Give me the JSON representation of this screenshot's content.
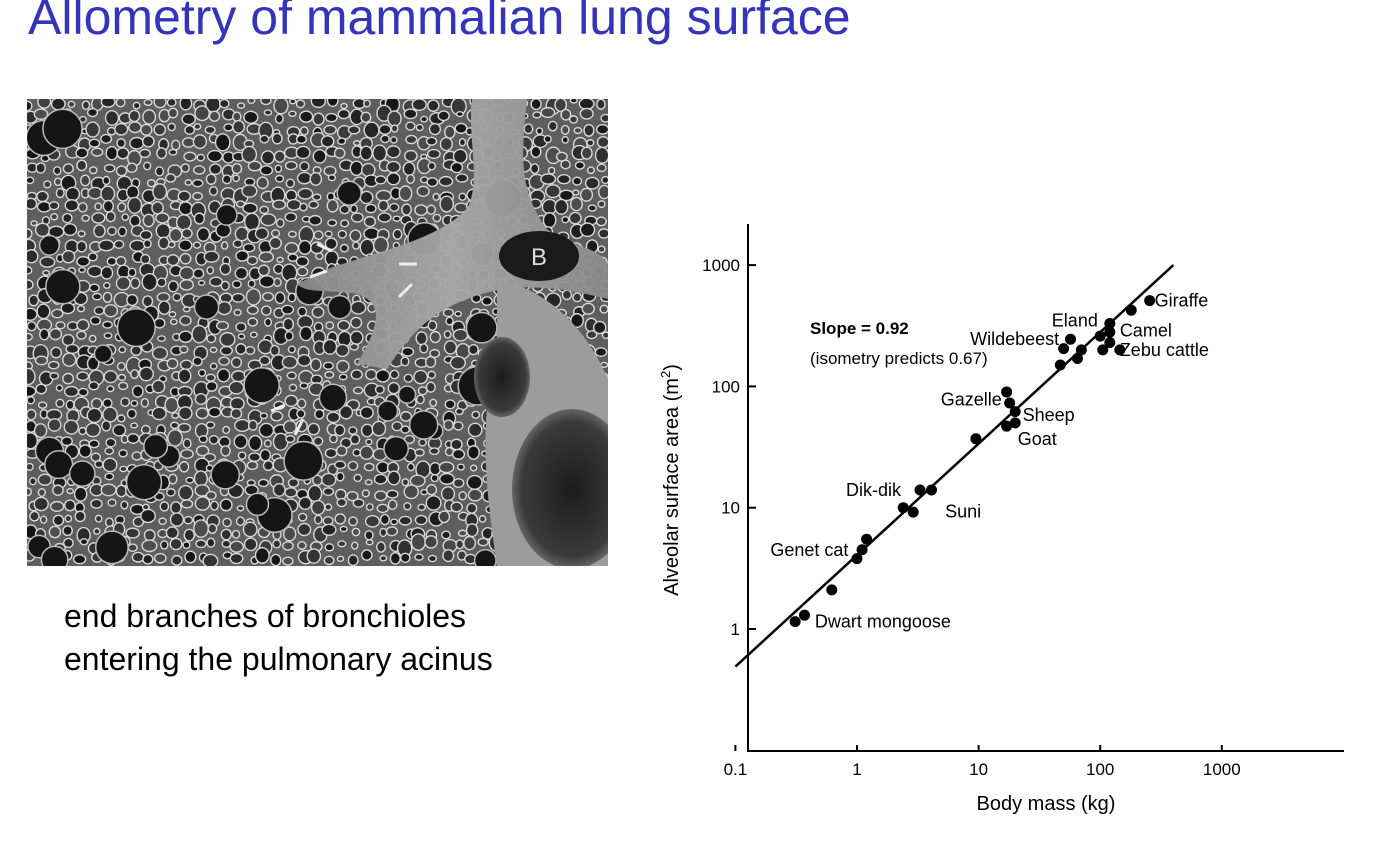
{
  "slide": {
    "title": "Allometry of mammalian lung surface",
    "caption_lines": [
      "end branches of bronchioles",
      "entering the pulmonary acinus"
    ]
  },
  "micrograph": {
    "label": "B"
  },
  "colors": {
    "title": "#3333bb",
    "ink": "#000000"
  },
  "chart_data": {
    "type": "scatter",
    "xlabel": "Body mass (kg)",
    "ylabel": "Alveolar surface area (m",
    "ylabel_sup": "2",
    "ylabel_close": ")",
    "x_scale": "log",
    "y_scale": "log",
    "xlim": [
      0.015,
      1500
    ],
    "ylim": [
      0.1,
      2000
    ],
    "x_ticks": [
      0.1,
      1,
      10,
      100,
      1000
    ],
    "x_tick_labels": [
      "0.1",
      "1",
      "10",
      "100",
      "1000"
    ],
    "y_ticks": [
      1,
      10,
      100,
      1000
    ],
    "y_tick_labels": [
      "1",
      "10",
      "100",
      "1000"
    ],
    "grid": false,
    "annotation_bold": "Slope = 0.92",
    "annotation_note": "(isometry predicts 0.67)",
    "fit_line": {
      "slope": 0.92,
      "x": [
        0.1,
        400
      ],
      "y": [
        0.49,
        1000
      ]
    },
    "points": [
      {
        "x": 0.31,
        "y": 1.15
      },
      {
        "x": 0.37,
        "y": 1.3
      },
      {
        "x": 0.62,
        "y": 2.1
      },
      {
        "x": 1.0,
        "y": 3.8
      },
      {
        "x": 1.1,
        "y": 4.5
      },
      {
        "x": 1.2,
        "y": 5.5
      },
      {
        "x": 2.4,
        "y": 10
      },
      {
        "x": 2.9,
        "y": 9.2
      },
      {
        "x": 3.3,
        "y": 14
      },
      {
        "x": 4.1,
        "y": 14
      },
      {
        "x": 9.5,
        "y": 37
      },
      {
        "x": 17,
        "y": 90
      },
      {
        "x": 18,
        "y": 73
      },
      {
        "x": 17,
        "y": 47
      },
      {
        "x": 20,
        "y": 62
      },
      {
        "x": 20,
        "y": 50
      },
      {
        "x": 47,
        "y": 150
      },
      {
        "x": 50,
        "y": 205
      },
      {
        "x": 57,
        "y": 245
      },
      {
        "x": 65,
        "y": 170
      },
      {
        "x": 70,
        "y": 200
      },
      {
        "x": 100,
        "y": 260
      },
      {
        "x": 105,
        "y": 200
      },
      {
        "x": 120,
        "y": 230
      },
      {
        "x": 120,
        "y": 330
      },
      {
        "x": 120,
        "y": 280
      },
      {
        "x": 145,
        "y": 200
      },
      {
        "x": 180,
        "y": 425
      },
      {
        "x": 255,
        "y": 510
      }
    ],
    "labels": [
      {
        "text": "Dwart mongoose",
        "x": 0.45,
        "y": 1.15,
        "anchor": "start"
      },
      {
        "text": "Genet cat",
        "x": 0.85,
        "y": 4.5,
        "anchor": "end"
      },
      {
        "text": "Dik-dik",
        "x": 2.3,
        "y": 14,
        "anchor": "end"
      },
      {
        "text": "Suni",
        "x": 5.3,
        "y": 9.3,
        "anchor": "start"
      },
      {
        "text": "Gazelle",
        "x": 15.5,
        "y": 78,
        "anchor": "end"
      },
      {
        "text": "Sheep",
        "x": 23,
        "y": 58,
        "anchor": "start"
      },
      {
        "text": "Goat",
        "x": 21,
        "y": 37,
        "anchor": "start"
      },
      {
        "text": "Wildebeest",
        "x": 46,
        "y": 245,
        "anchor": "end"
      },
      {
        "text": "Eland",
        "x": 40,
        "y": 350,
        "anchor": "start"
      },
      {
        "text": "Camel",
        "x": 145,
        "y": 290,
        "anchor": "start"
      },
      {
        "text": "Zebu cattle",
        "x": 145,
        "y": 200,
        "anchor": "start"
      },
      {
        "text": "Giraffe",
        "x": 280,
        "y": 510,
        "anchor": "start"
      }
    ]
  }
}
